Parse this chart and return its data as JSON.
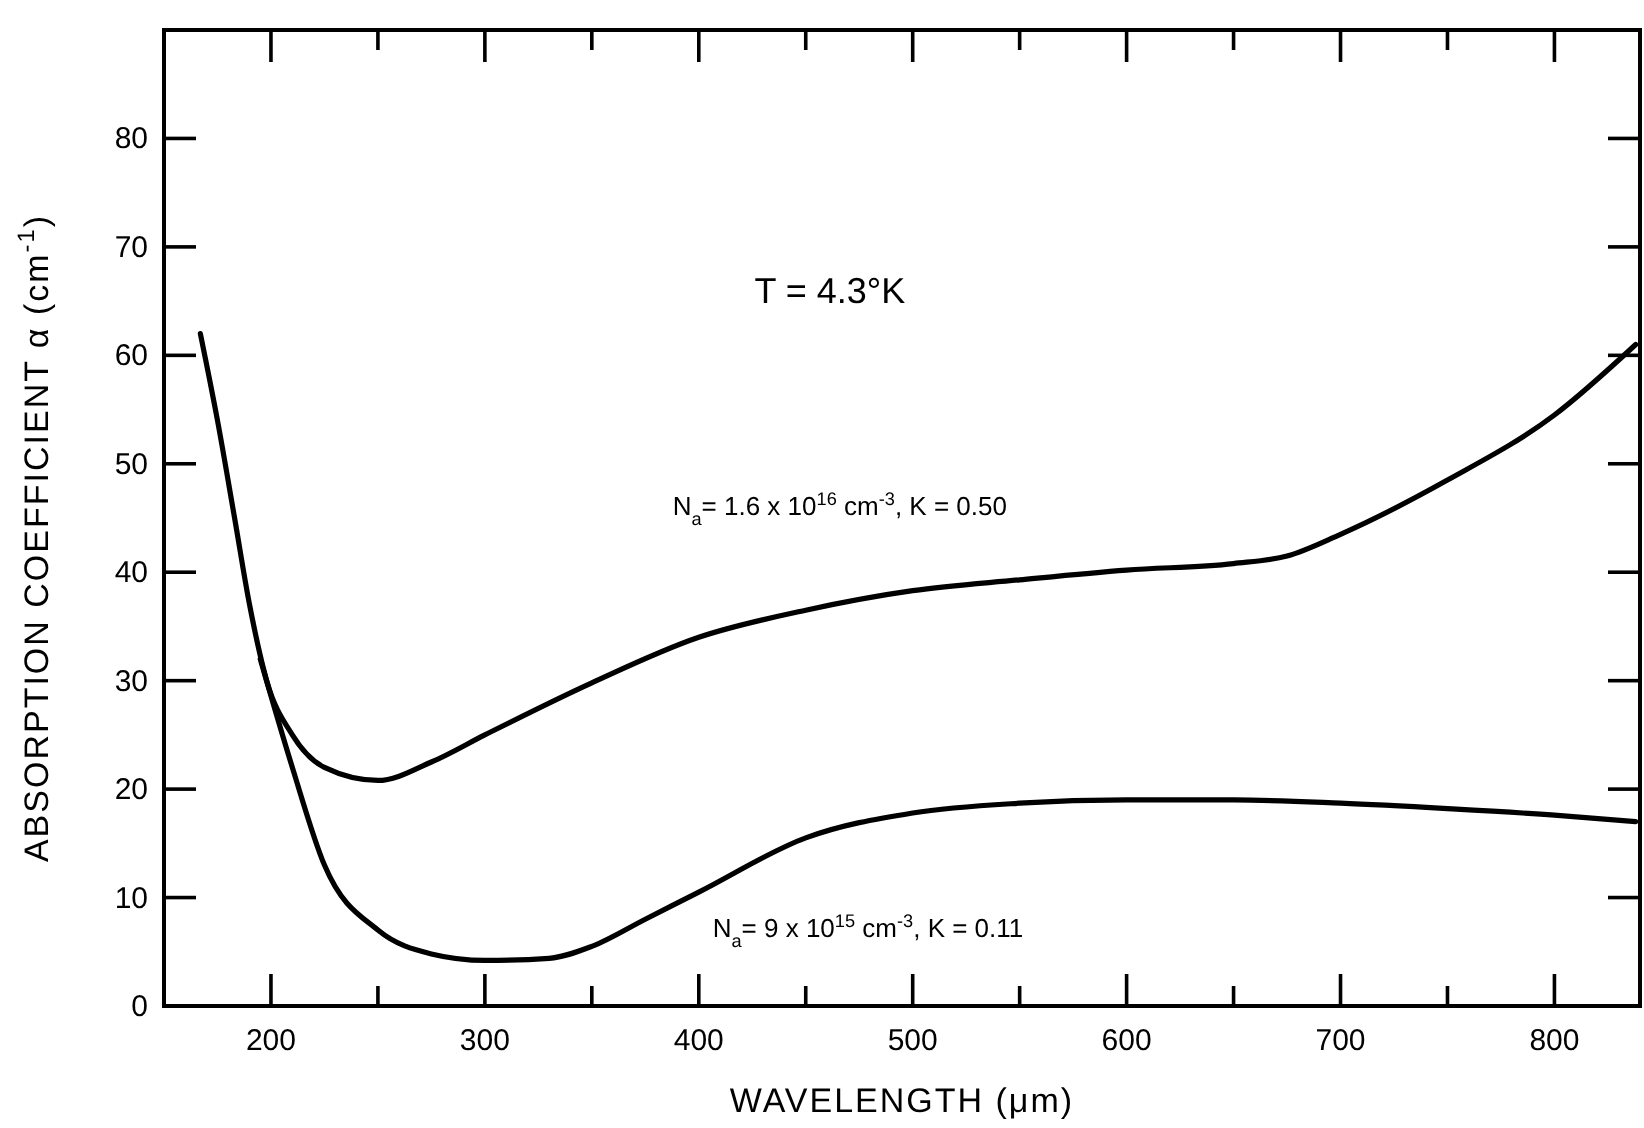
{
  "chart_data": {
    "type": "line",
    "xlabel": "WAVELENGTH (μm)",
    "ylabel": "ABSORPTION COEFFICIENT α (cm$^{-1}$)",
    "annotations": [
      "T = 4.3°K"
    ],
    "xlim": [
      150,
      840
    ],
    "ylim": [
      0,
      90
    ],
    "xticks": [
      200,
      {
        "value": 250,
        "label": null
      },
      300,
      {
        "value": 350,
        "label": null
      },
      400,
      {
        "value": 450,
        "label": null
      },
      500,
      {
        "value": 550,
        "label": null
      },
      600,
      {
        "value": 650,
        "label": null
      },
      700,
      {
        "value": 750,
        "label": null
      },
      800
    ],
    "yticks": [
      0,
      10,
      20,
      30,
      40,
      50,
      60,
      70,
      80
    ],
    "marker": "none",
    "line_style": "solid",
    "grid": false,
    "series": [
      {
        "name": "N$_{a}$= 1.6 x 10$^{16}$ cm$^{-3}$, K = 0.50",
        "color": "#000000",
        "x": [
          167,
          175,
          183,
          190,
          198,
          210,
          225,
          250,
          275,
          300,
          350,
          400,
          450,
          500,
          550,
          600,
          650,
          675,
          700,
          750,
          800,
          838
        ],
        "values": [
          62,
          54,
          45,
          37,
          30,
          25,
          22,
          20.8,
          22.5,
          25,
          29.8,
          34,
          36.5,
          38.3,
          39.3,
          40.2,
          40.8,
          41.5,
          43.5,
          48.5,
          54.5,
          61
        ]
      },
      {
        "name": "N$_{a}$= 9 x 10$^{15}$ cm$^{-3}$, K = 0.11",
        "color": "#000000",
        "x": [
          195,
          210,
          225,
          250,
          275,
          300,
          330,
          350,
          375,
          400,
          450,
          500,
          550,
          600,
          650,
          700,
          750,
          800,
          838
        ],
        "values": [
          32,
          22,
          13,
          7,
          4.8,
          4.2,
          4.4,
          5.5,
          8,
          10.5,
          15.5,
          17.8,
          18.7,
          19,
          19,
          18.7,
          18.2,
          17.6,
          17
        ]
      }
    ]
  }
}
